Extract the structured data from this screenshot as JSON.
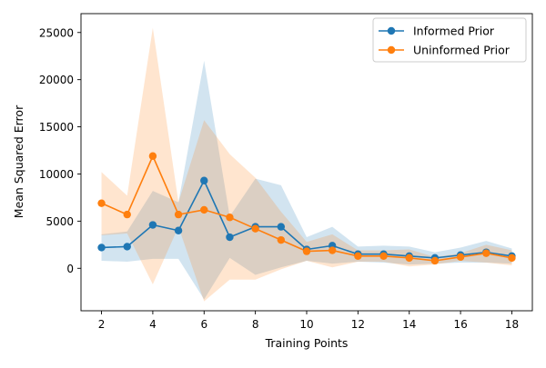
{
  "chart_data": {
    "type": "line",
    "title": "",
    "xlabel": "Training Points",
    "ylabel": "Mean Squared Error",
    "xlim": [
      1.2,
      18.8
    ],
    "ylim": [
      -4500,
      27000
    ],
    "xticks": [
      2,
      4,
      6,
      8,
      10,
      12,
      14,
      16,
      18
    ],
    "yticks": [
      0,
      5000,
      10000,
      15000,
      20000,
      25000
    ],
    "grid": false,
    "legend_position": "top-right",
    "x": [
      2,
      3,
      4,
      5,
      6,
      7,
      8,
      9,
      10,
      11,
      12,
      13,
      14,
      15,
      16,
      17,
      18
    ],
    "series": [
      {
        "name": "Informed Prior",
        "color": "#1f77b4",
        "marker": "circle",
        "values": [
          2200,
          2300,
          4600,
          4000,
          9300,
          3300,
          4400,
          4400,
          2000,
          2400,
          1500,
          1500,
          1300,
          1100,
          1400,
          1700,
          1300
        ],
        "band_lower": [
          800,
          700,
          1000,
          1000,
          -3300,
          1100,
          -700,
          100,
          800,
          500,
          700,
          600,
          400,
          500,
          600,
          600,
          500
        ],
        "band_upper": [
          3600,
          3900,
          8200,
          7000,
          22000,
          5500,
          9500,
          8800,
          3300,
          4400,
          2300,
          2400,
          2300,
          1700,
          2200,
          2900,
          2100
        ]
      },
      {
        "name": "Uninformed Prior",
        "color": "#ff7f0e",
        "marker": "circle",
        "values": [
          6900,
          5700,
          11900,
          5700,
          6200,
          5400,
          4200,
          3000,
          1800,
          1900,
          1300,
          1300,
          1100,
          800,
          1200,
          1600,
          1100
        ],
        "band_lower": [
          3500,
          3700,
          -1700,
          4400,
          -3500,
          -1200,
          -1200,
          -100,
          800,
          100,
          700,
          700,
          200,
          400,
          800,
          600,
          300
        ],
        "band_upper": [
          10200,
          7700,
          25500,
          7000,
          15700,
          12100,
          9600,
          6000,
          2800,
          3600,
          1900,
          1900,
          2000,
          1200,
          1600,
          2500,
          1900
        ]
      }
    ]
  }
}
